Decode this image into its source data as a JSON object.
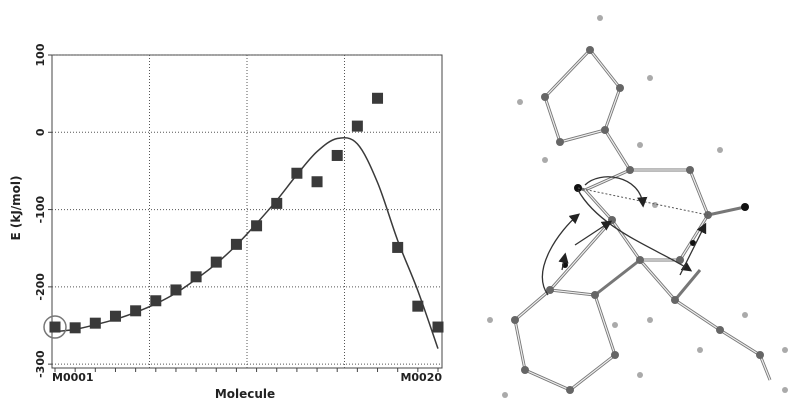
{
  "chart_data": {
    "type": "scatter",
    "xlabel": "Molecule",
    "ylabel": "E (kJ/mol)",
    "categories": [
      "M0001",
      null,
      null,
      null,
      null,
      null,
      null,
      null,
      null,
      null,
      null,
      null,
      null,
      null,
      null,
      null,
      null,
      null,
      null,
      "M0020"
    ],
    "series": [
      {
        "color": "#3a3a3a",
        "values": [
          -252,
          -253,
          -247,
          -238,
          -231,
          -218,
          -204,
          -187,
          -168,
          -145,
          -121,
          -92,
          -53,
          -64,
          -30,
          8,
          44,
          -149,
          -225,
          -252
        ]
      },
      {
        "color": "#3a3a3a",
        "values": [
          -258,
          -255,
          -249,
          -242,
          -233,
          -222,
          -208,
          -190,
          -170,
          -146,
          -118,
          -88,
          -55,
          -25,
          -8,
          -15,
          -65,
          -140,
          -205,
          -280
        ]
      }
    ],
    "ylim": [
      -305,
      100
    ],
    "yticks": [
      -300,
      -200,
      -100,
      0,
      100
    ],
    "grid": true
  }
}
